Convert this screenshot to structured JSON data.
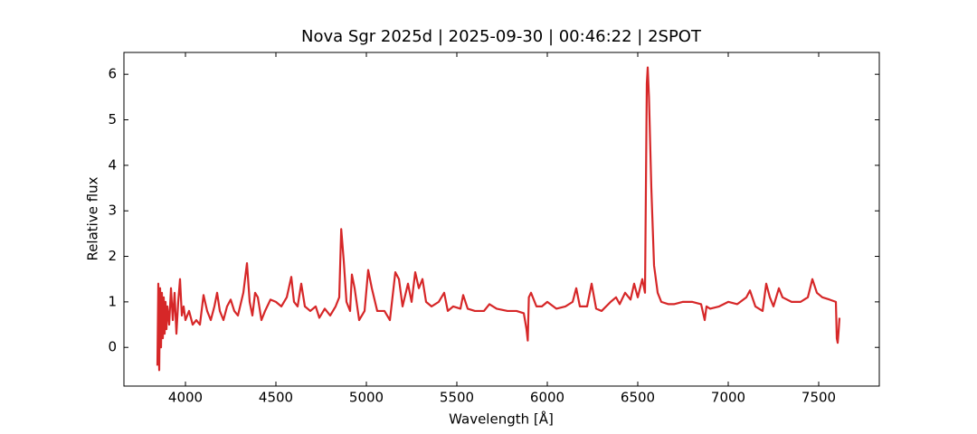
{
  "chart_data": {
    "type": "line",
    "title": "Nova Sgr 2025d | 2025-09-30 | 00:46:22 | 2SPOT",
    "x_label": "Wavelength [Å]",
    "y_label": "Relative flux",
    "xlim": [
      3660,
      7835
    ],
    "ylim": [
      -0.85,
      6.48
    ],
    "xticks": [
      4000,
      4500,
      5000,
      5500,
      6000,
      6500,
      7000,
      7500
    ],
    "yticks": [
      0,
      1,
      2,
      3,
      4,
      5,
      6
    ],
    "series": [
      {
        "color": "#d62728",
        "x": [
          3845,
          3850,
          3855,
          3860,
          3865,
          3870,
          3875,
          3880,
          3885,
          3890,
          3895,
          3900,
          3910,
          3920,
          3930,
          3940,
          3950,
          3960,
          3970,
          3980,
          3990,
          4000,
          4020,
          4040,
          4060,
          4080,
          4100,
          4120,
          4140,
          4160,
          4175,
          4190,
          4210,
          4230,
          4250,
          4270,
          4290,
          4320,
          4340,
          4355,
          4370,
          4385,
          4400,
          4420,
          4440,
          4470,
          4500,
          4530,
          4560,
          4585,
          4600,
          4620,
          4640,
          4660,
          4690,
          4720,
          4740,
          4770,
          4800,
          4830,
          4850,
          4861,
          4875,
          4890,
          4910,
          4920,
          4935,
          4960,
          4990,
          5010,
          5030,
          5060,
          5100,
          5130,
          5160,
          5180,
          5200,
          5230,
          5250,
          5270,
          5290,
          5310,
          5330,
          5360,
          5400,
          5430,
          5450,
          5480,
          5520,
          5535,
          5560,
          5600,
          5650,
          5680,
          5720,
          5780,
          5830,
          5870,
          5885,
          5892,
          5898,
          5910,
          5940,
          5970,
          6000,
          6050,
          6100,
          6140,
          6160,
          6180,
          6220,
          6245,
          6270,
          6300,
          6350,
          6380,
          6400,
          6430,
          6460,
          6480,
          6500,
          6525,
          6540,
          6550,
          6555,
          6562,
          6575,
          6590,
          6610,
          6630,
          6670,
          6700,
          6750,
          6800,
          6850,
          6870,
          6880,
          6900,
          6950,
          7000,
          7050,
          7100,
          7120,
          7150,
          7190,
          7210,
          7230,
          7250,
          7280,
          7300,
          7350,
          7400,
          7440,
          7465,
          7490,
          7520,
          7560,
          7595,
          7600,
          7605,
          7610,
          7615
        ],
        "values": [
          -0.4,
          1.4,
          -0.5,
          1.3,
          0.0,
          1.2,
          0.2,
          1.1,
          0.3,
          1.0,
          0.4,
          0.9,
          0.5,
          1.3,
          0.6,
          1.2,
          0.3,
          1.0,
          1.5,
          0.7,
          0.9,
          0.6,
          0.8,
          0.5,
          0.6,
          0.5,
          1.15,
          0.8,
          0.6,
          0.9,
          1.2,
          0.8,
          0.6,
          0.9,
          1.05,
          0.8,
          0.7,
          1.2,
          1.85,
          1.0,
          0.7,
          1.2,
          1.1,
          0.6,
          0.8,
          1.05,
          1.0,
          0.9,
          1.1,
          1.55,
          1.0,
          0.9,
          1.4,
          0.9,
          0.8,
          0.9,
          0.65,
          0.85,
          0.7,
          0.9,
          1.1,
          2.6,
          1.9,
          1.0,
          0.8,
          1.6,
          1.3,
          0.6,
          0.8,
          1.7,
          1.3,
          0.8,
          0.8,
          0.6,
          1.65,
          1.5,
          0.9,
          1.4,
          1.0,
          1.65,
          1.3,
          1.5,
          1.0,
          0.9,
          1.0,
          1.2,
          0.8,
          0.9,
          0.85,
          1.15,
          0.85,
          0.8,
          0.8,
          0.95,
          0.85,
          0.8,
          0.8,
          0.75,
          0.4,
          0.15,
          1.1,
          1.2,
          0.9,
          0.9,
          1.0,
          0.85,
          0.9,
          1.0,
          1.3,
          0.9,
          0.9,
          1.4,
          0.85,
          0.8,
          1.0,
          1.1,
          0.95,
          1.2,
          1.05,
          1.4,
          1.1,
          1.5,
          1.2,
          5.8,
          6.15,
          5.5,
          3.5,
          1.8,
          1.2,
          1.0,
          0.95,
          0.95,
          1.0,
          1.0,
          0.95,
          0.6,
          0.9,
          0.85,
          0.9,
          1.0,
          0.95,
          1.1,
          1.25,
          0.9,
          0.8,
          1.4,
          1.1,
          0.9,
          1.3,
          1.1,
          1.0,
          1.0,
          1.1,
          1.5,
          1.2,
          1.1,
          1.05,
          1.0,
          0.2,
          0.1,
          0.35,
          0.65
        ]
      }
    ]
  }
}
